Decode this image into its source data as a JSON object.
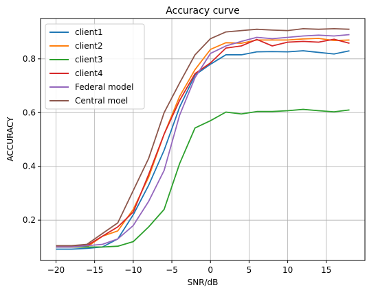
{
  "chart_data": {
    "type": "line",
    "title": "Accuracy curve",
    "xlabel": "SNR/dB",
    "ylabel": "ACCURACY",
    "xlim": [
      -22,
      20
    ],
    "ylim": [
      0.05,
      0.95
    ],
    "grid": true,
    "legend_position": "upper-left",
    "x_ticks": [
      -20,
      -15,
      -10,
      -5,
      0,
      5,
      10,
      15
    ],
    "y_ticks": [
      0.2,
      0.4,
      0.6,
      0.8
    ],
    "x_tick_labels": [
      "−20",
      "−15",
      "−10",
      "−5",
      "0",
      "5",
      "10",
      "15"
    ],
    "y_tick_labels": [
      "0.2",
      "0.4",
      "0.6",
      "0.8"
    ],
    "x": [
      -20,
      -18,
      -16,
      -14,
      -12,
      -10,
      -8,
      -6,
      -4,
      -2,
      0,
      2,
      4,
      6,
      8,
      10,
      12,
      14,
      16,
      18
    ],
    "series": [
      {
        "name": "client1",
        "color": "#1f77b4",
        "values": [
          0.092,
          0.092,
          0.095,
          0.1,
          0.13,
          0.22,
          0.33,
          0.46,
          0.62,
          0.74,
          0.78,
          0.815,
          0.815,
          0.826,
          0.827,
          0.826,
          0.83,
          0.824,
          0.818,
          0.83
        ]
      },
      {
        "name": "client2",
        "color": "#ff7f0e",
        "values": [
          0.1,
          0.1,
          0.1,
          0.14,
          0.16,
          0.24,
          0.36,
          0.52,
          0.66,
          0.76,
          0.835,
          0.86,
          0.858,
          0.87,
          0.87,
          0.87,
          0.874,
          0.876,
          0.868,
          0.87
        ]
      },
      {
        "name": "client3",
        "color": "#2ca02c",
        "values": [
          0.1,
          0.1,
          0.1,
          0.1,
          0.103,
          0.12,
          0.175,
          0.24,
          0.41,
          0.543,
          0.57,
          0.602,
          0.595,
          0.604,
          0.604,
          0.607,
          0.612,
          0.607,
          0.603,
          0.61
        ]
      },
      {
        "name": "client4",
        "color": "#d62728",
        "values": [
          0.105,
          0.105,
          0.105,
          0.14,
          0.175,
          0.23,
          0.37,
          0.52,
          0.645,
          0.745,
          0.785,
          0.84,
          0.848,
          0.872,
          0.848,
          0.862,
          0.865,
          0.862,
          0.873,
          0.858
        ]
      },
      {
        "name": "Federal model",
        "color": "#9467bd",
        "values": [
          0.1,
          0.1,
          0.105,
          0.11,
          0.13,
          0.18,
          0.27,
          0.385,
          0.59,
          0.73,
          0.82,
          0.848,
          0.865,
          0.88,
          0.875,
          0.88,
          0.885,
          0.888,
          0.885,
          0.89
        ]
      },
      {
        "name": "Central moel",
        "color": "#8c564b",
        "values": [
          0.105,
          0.105,
          0.11,
          0.15,
          0.19,
          0.31,
          0.43,
          0.6,
          0.71,
          0.815,
          0.875,
          0.9,
          0.905,
          0.91,
          0.907,
          0.905,
          0.912,
          0.91,
          0.912,
          0.91
        ]
      }
    ]
  }
}
